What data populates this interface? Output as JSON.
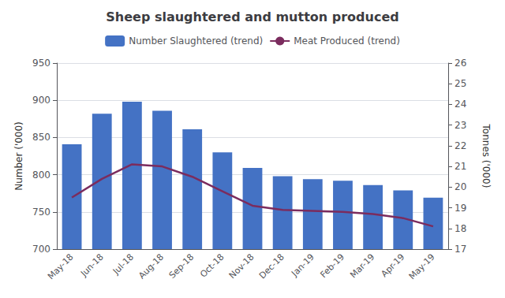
{
  "chart_data": {
    "type": "bar",
    "title": "Sheep slaughtered and mutton produced",
    "categories": [
      "May-18",
      "Jun-18",
      "Jul-18",
      "Aug-18",
      "Sep-18",
      "Oct-18",
      "Nov-18",
      "Dec-18",
      "Jan-19",
      "Feb-19",
      "Mar-19",
      "Apr-19",
      "May-19"
    ],
    "series": [
      {
        "name": "Number Slaughtered (trend)",
        "type": "bar",
        "color": "#4472C4",
        "values": [
          841,
          882,
          898,
          886,
          861,
          830,
          809,
          798,
          794,
          792,
          786,
          779,
          769
        ]
      },
      {
        "name": "Meat Produced (trend)",
        "type": "line",
        "color": "#7B2C5E",
        "axis": "y2",
        "values": [
          19.5,
          20.4,
          21.1,
          21.0,
          20.5,
          19.8,
          19.1,
          18.9,
          18.85,
          18.8,
          18.7,
          18.5,
          18.1
        ]
      }
    ],
    "ylabel": "Number ('000)",
    "y2label": "Tonnes ('000)",
    "ylim": [
      700,
      950
    ],
    "yticks": [
      700,
      750,
      800,
      850,
      900,
      950
    ],
    "y2lim": [
      17.0,
      26.0
    ],
    "y2ticks": [
      17.0,
      18.0,
      19.0,
      20.0,
      21.0,
      22.0,
      23.0,
      24.0,
      25.0,
      26.0
    ],
    "grid": true,
    "legend": "top"
  }
}
